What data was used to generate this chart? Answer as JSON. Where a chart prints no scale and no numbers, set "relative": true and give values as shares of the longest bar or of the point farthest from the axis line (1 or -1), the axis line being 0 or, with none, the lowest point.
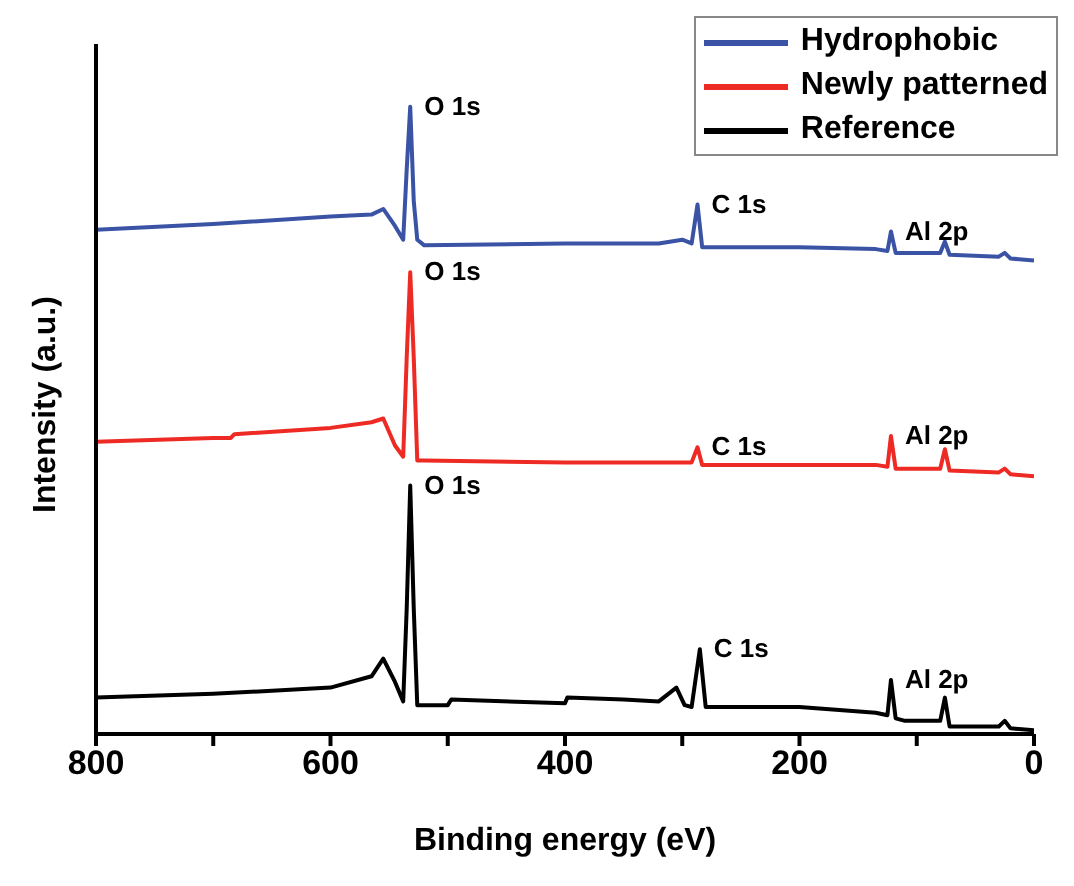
{
  "chart_data": {
    "type": "line",
    "xlabel": "Binding energy (eV)",
    "ylabel": "Intensity (a.u.)",
    "relative": true,
    "xlim": [
      800,
      0
    ],
    "xticks": [
      800,
      {
        "value": 700,
        "label": null
      },
      600,
      {
        "value": 500,
        "label": null
      },
      400,
      {
        "value": 300,
        "label": null
      },
      200,
      {
        "value": 100,
        "label": null
      },
      0
    ],
    "legend": "top right",
    "grid": false,
    "marker": "none",
    "line_style": "solid",
    "series": [
      {
        "name": "Hydrophobic",
        "color": "#3a53a4",
        "x": [
          800,
          700,
          600,
          565,
          555,
          545,
          538,
          535,
          532,
          529,
          526,
          520,
          400,
          320,
          300,
          292,
          287,
          283,
          200,
          135,
          125,
          122,
          118,
          80,
          76,
          72,
          30,
          25,
          20,
          0
        ],
        "values": [
          0.804,
          0.813,
          0.825,
          0.828,
          0.837,
          0.81,
          0.788,
          0.9,
          1,
          0.85,
          0.788,
          0.779,
          0.782,
          0.782,
          0.788,
          0.782,
          0.844,
          0.776,
          0.776,
          0.773,
          0.77,
          0.801,
          0.767,
          0.767,
          0.785,
          0.764,
          0.761,
          0.767,
          0.758,
          0.755
        ]
      },
      {
        "name": "Newly patterned",
        "color": "#ee2a24",
        "x": [
          800,
          700,
          685,
          682,
          600,
          565,
          555,
          545,
          538,
          535,
          532,
          529,
          526,
          520,
          400,
          300,
          292,
          287,
          283,
          200,
          135,
          125,
          122,
          118,
          80,
          76,
          72,
          30,
          25,
          20,
          0
        ],
        "values": [
          0.466,
          0.472,
          0.472,
          0.478,
          0.488,
          0.497,
          0.503,
          0.46,
          0.442,
          0.6,
          0.736,
          0.6,
          0.436,
          0.436,
          0.433,
          0.433,
          0.433,
          0.457,
          0.429,
          0.429,
          0.429,
          0.426,
          0.475,
          0.423,
          0.423,
          0.454,
          0.42,
          0.417,
          0.423,
          0.414,
          0.411
        ]
      },
      {
        "name": "Reference",
        "color": "#000000",
        "x": [
          800,
          700,
          600,
          565,
          555,
          545,
          538,
          535,
          532,
          529,
          526,
          520,
          500,
          497,
          400,
          398,
          350,
          320,
          305,
          298,
          292,
          285,
          280,
          200,
          135,
          125,
          122,
          118,
          110,
          80,
          76,
          72,
          30,
          25,
          20,
          0
        ],
        "values": [
          0.058,
          0.064,
          0.074,
          0.092,
          0.12,
          0.083,
          0.052,
          0.2,
          0.396,
          0.2,
          0.046,
          0.046,
          0.046,
          0.055,
          0.049,
          0.058,
          0.055,
          0.052,
          0.074,
          0.046,
          0.043,
          0.135,
          0.043,
          0.043,
          0.034,
          0.03,
          0.086,
          0.025,
          0.021,
          0.021,
          0.058,
          0.012,
          0.012,
          0.021,
          0.009,
          0.006
        ]
      }
    ],
    "annotations": [
      {
        "text": "O 1s",
        "x": 532,
        "y": 1
      },
      {
        "text": "C 1s",
        "x": 287,
        "y": 0.844
      },
      {
        "text": "Al 2p",
        "x": 122,
        "y": 0.801
      },
      {
        "text": "O 1s",
        "x": 532,
        "y": 0.736
      },
      {
        "text": "C 1s",
        "x": 287,
        "y": 0.457
      },
      {
        "text": "Al 2p",
        "x": 122,
        "y": 0.475
      },
      {
        "text": "O 1s",
        "x": 532,
        "y": 0.396
      },
      {
        "text": "C 1s",
        "x": 285,
        "y": 0.135
      },
      {
        "text": "Al 2p",
        "x": 122,
        "y": 0.086
      }
    ]
  }
}
